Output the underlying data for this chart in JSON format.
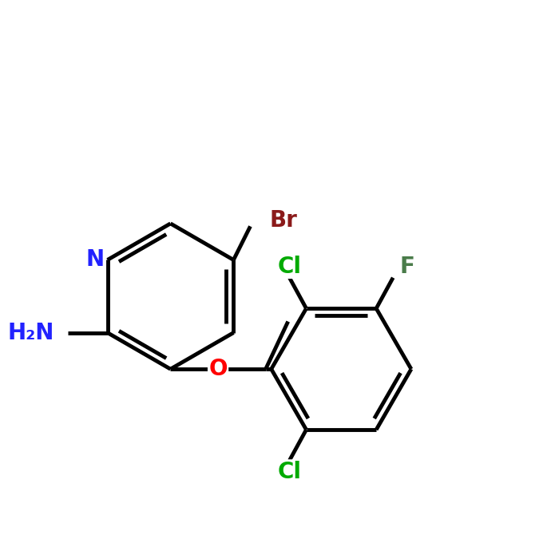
{
  "background_color": "#000000",
  "bond_color": "#000000",
  "bond_width": 3.0,
  "figsize": [
    7.0,
    7.0
  ],
  "dpi": 100,
  "atoms": {
    "N": {
      "color": "#2222ff"
    },
    "NH2": {
      "color": "#2222ff"
    },
    "Br": {
      "color": "#8b1a1a"
    },
    "O": {
      "color": "#ff0000"
    },
    "Cl": {
      "color": "#00aa00"
    },
    "F": {
      "color": "#4a7c4a"
    }
  }
}
